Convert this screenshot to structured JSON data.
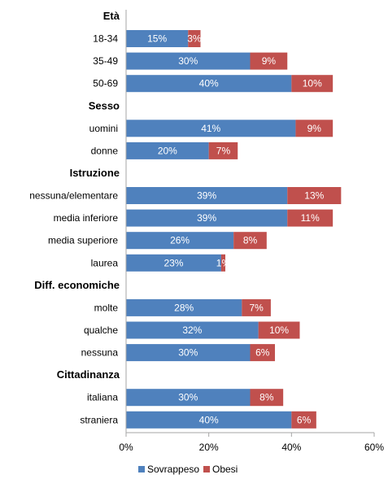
{
  "chart_data": {
    "type": "bar",
    "orientation": "horizontal",
    "stacked": true,
    "xlim": [
      0,
      60
    ],
    "xticks": [
      "0%",
      "20%",
      "40%",
      "60%"
    ],
    "grid": false,
    "legend_position": "bottom",
    "series": [
      {
        "name": "Sovrappeso",
        "color": "#4f81bd"
      },
      {
        "name": "Obesi",
        "color": "#c0504d"
      }
    ],
    "groups": [
      {
        "title": "Età",
        "items": [
          {
            "label": "18-34",
            "values": [
              15,
              3
            ],
            "labels": [
              "15%",
              "3%"
            ]
          },
          {
            "label": "35-49",
            "values": [
              30,
              9
            ],
            "labels": [
              "30%",
              "9%"
            ]
          },
          {
            "label": "50-69",
            "values": [
              40,
              10
            ],
            "labels": [
              "40%",
              "10%"
            ]
          }
        ]
      },
      {
        "title": "Sesso",
        "items": [
          {
            "label": "uomini",
            "values": [
              41,
              9
            ],
            "labels": [
              "41%",
              "9%"
            ]
          },
          {
            "label": "donne",
            "values": [
              20,
              7
            ],
            "labels": [
              "20%",
              "7%"
            ]
          }
        ]
      },
      {
        "title": "Istruzione",
        "items": [
          {
            "label": "nessuna/elementare",
            "values": [
              39,
              13
            ],
            "labels": [
              "39%",
              "13%"
            ]
          },
          {
            "label": "media inferiore",
            "values": [
              39,
              11
            ],
            "labels": [
              "39%",
              "11%"
            ]
          },
          {
            "label": "media superiore",
            "values": [
              26,
              8
            ],
            "labels": [
              "26%",
              "8%"
            ]
          },
          {
            "label": "laurea",
            "values": [
              23,
              1
            ],
            "labels": [
              "23%",
              "1%"
            ]
          }
        ]
      },
      {
        "title": "Diff. economiche",
        "items": [
          {
            "label": "molte",
            "values": [
              28,
              7
            ],
            "labels": [
              "28%",
              "7%"
            ]
          },
          {
            "label": "qualche",
            "values": [
              32,
              10
            ],
            "labels": [
              "32%",
              "10%"
            ]
          },
          {
            "label": "nessuna",
            "values": [
              30,
              6
            ],
            "labels": [
              "30%",
              "6%"
            ]
          }
        ]
      },
      {
        "title": "Cittadinanza",
        "items": [
          {
            "label": "italiana",
            "values": [
              30,
              8
            ],
            "labels": [
              "30%",
              "8%"
            ]
          },
          {
            "label": "straniera",
            "values": [
              40,
              6
            ],
            "labels": [
              "40%",
              "6%"
            ]
          }
        ]
      }
    ]
  }
}
